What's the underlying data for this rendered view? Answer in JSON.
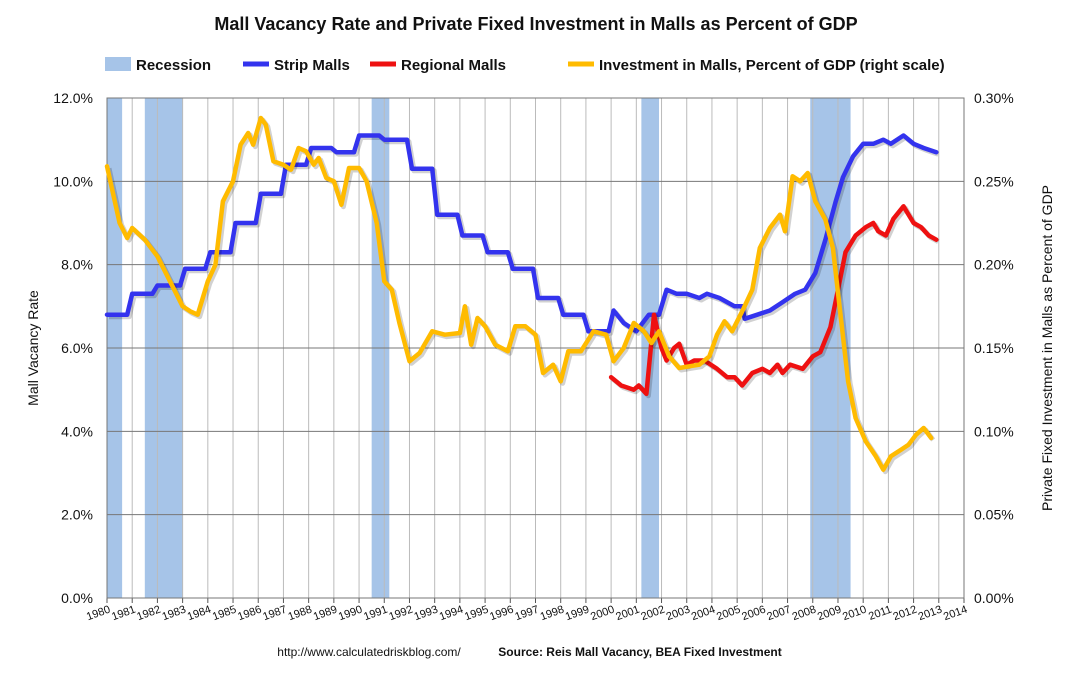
{
  "chart_data": {
    "type": "line",
    "title": "Mall Vacancy Rate and Private Fixed Investment in Malls as Percent of GDP",
    "ylabel": "Mall Vacancy Rate",
    "ylabel_right": "Private Fixed Investment in Malls as Percent of GDP",
    "ylim": [
      0,
      12
    ],
    "ylim_right": [
      0,
      0.3
    ],
    "xlim": [
      1980,
      2014
    ],
    "y_ticks": [
      "0.0%",
      "2.0%",
      "4.0%",
      "6.0%",
      "8.0%",
      "10.0%",
      "12.0%"
    ],
    "y_ticks_right": [
      "0.00%",
      "0.05%",
      "0.10%",
      "0.15%",
      "0.20%",
      "0.25%",
      "0.30%"
    ],
    "x_ticks": [
      "1980",
      "1981",
      "1982",
      "1983",
      "1984",
      "1985",
      "1986",
      "1987",
      "1988",
      "1989",
      "1990",
      "1991",
      "1992",
      "1993",
      "1994",
      "1995",
      "1996",
      "1997",
      "1998",
      "1999",
      "2000",
      "2001",
      "2002",
      "2003",
      "2004",
      "2005",
      "2006",
      "2007",
      "2008",
      "2009",
      "2010",
      "2011",
      "2012",
      "2013",
      "2014"
    ],
    "legend": [
      "Recession",
      "Strip Malls",
      "Regional Malls",
      "Investment in Malls, Percent of GDP (right scale)"
    ],
    "legend_position": "top",
    "grid": true,
    "recessions": [
      [
        1980.0,
        1980.6
      ],
      [
        1981.5,
        1983.0
      ],
      [
        1990.5,
        1991.2
      ],
      [
        2001.2,
        2001.9
      ],
      [
        2007.9,
        2009.5
      ]
    ],
    "series": [
      {
        "name": "Strip Malls",
        "color": "#3333ee",
        "axis": "left",
        "points": [
          [
            1980,
            6.8
          ],
          [
            1980.8,
            6.8
          ],
          [
            1981,
            7.3
          ],
          [
            1981.8,
            7.3
          ],
          [
            1982,
            7.5
          ],
          [
            1982.9,
            7.5
          ],
          [
            1983.1,
            7.9
          ],
          [
            1983.9,
            7.9
          ],
          [
            1984.1,
            8.3
          ],
          [
            1984.9,
            8.3
          ],
          [
            1985.1,
            9.0
          ],
          [
            1985.9,
            9.0
          ],
          [
            1986.1,
            9.7
          ],
          [
            1986.9,
            9.7
          ],
          [
            1987.1,
            10.4
          ],
          [
            1987.9,
            10.4
          ],
          [
            1988.1,
            10.8
          ],
          [
            1988.9,
            10.8
          ],
          [
            1989.1,
            10.7
          ],
          [
            1989.8,
            10.7
          ],
          [
            1990,
            11.1
          ],
          [
            1990.8,
            11.1
          ],
          [
            1991,
            11.0
          ],
          [
            1991.9,
            11.0
          ],
          [
            1992.1,
            10.3
          ],
          [
            1992.9,
            10.3
          ],
          [
            1993.1,
            9.2
          ],
          [
            1993.9,
            9.2
          ],
          [
            1994.1,
            8.7
          ],
          [
            1994.9,
            8.7
          ],
          [
            1995.1,
            8.3
          ],
          [
            1995.9,
            8.3
          ],
          [
            1996.1,
            7.9
          ],
          [
            1996.9,
            7.9
          ],
          [
            1997.1,
            7.2
          ],
          [
            1997.9,
            7.2
          ],
          [
            1998.1,
            6.8
          ],
          [
            1998.9,
            6.8
          ],
          [
            1999.1,
            6.4
          ],
          [
            1999.9,
            6.4
          ],
          [
            2000.1,
            6.9
          ],
          [
            2000.5,
            6.6
          ],
          [
            2001,
            6.4
          ],
          [
            2001.5,
            6.8
          ],
          [
            2001.9,
            6.8
          ],
          [
            2002.2,
            7.4
          ],
          [
            2002.6,
            7.3
          ],
          [
            2003,
            7.3
          ],
          [
            2003.5,
            7.2
          ],
          [
            2003.8,
            7.3
          ],
          [
            2004.3,
            7.2
          ],
          [
            2004.9,
            7.0
          ],
          [
            2005.2,
            7.0
          ],
          [
            2005.3,
            6.7
          ],
          [
            2005.8,
            6.8
          ],
          [
            2006.3,
            6.9
          ],
          [
            2006.8,
            7.1
          ],
          [
            2007.3,
            7.3
          ],
          [
            2007.7,
            7.4
          ],
          [
            2008.1,
            7.8
          ],
          [
            2008.5,
            8.6
          ],
          [
            2008.9,
            9.5
          ],
          [
            2009.2,
            10.1
          ],
          [
            2009.6,
            10.6
          ],
          [
            2010,
            10.9
          ],
          [
            2010.4,
            10.9
          ],
          [
            2010.8,
            11.0
          ],
          [
            2011.1,
            10.9
          ],
          [
            2011.6,
            11.1
          ],
          [
            2012,
            10.9
          ],
          [
            2012.4,
            10.8
          ],
          [
            2012.9,
            10.7
          ]
        ]
      },
      {
        "name": "Regional Malls",
        "color": "#ee1111",
        "axis": "left",
        "points": [
          [
            2000,
            5.3
          ],
          [
            2000.4,
            5.1
          ],
          [
            2000.9,
            5.0
          ],
          [
            2001.1,
            5.1
          ],
          [
            2001.4,
            4.9
          ],
          [
            2001.7,
            6.8
          ],
          [
            2002,
            6.0
          ],
          [
            2002.2,
            5.7
          ],
          [
            2002.5,
            6.0
          ],
          [
            2002.7,
            6.1
          ],
          [
            2003,
            5.6
          ],
          [
            2003.3,
            5.7
          ],
          [
            2003.7,
            5.7
          ],
          [
            2004.2,
            5.5
          ],
          [
            2004.6,
            5.3
          ],
          [
            2004.9,
            5.3
          ],
          [
            2005.2,
            5.1
          ],
          [
            2005.6,
            5.4
          ],
          [
            2006,
            5.5
          ],
          [
            2006.3,
            5.4
          ],
          [
            2006.6,
            5.6
          ],
          [
            2006.8,
            5.4
          ],
          [
            2007.1,
            5.6
          ],
          [
            2007.6,
            5.5
          ],
          [
            2008,
            5.8
          ],
          [
            2008.3,
            5.9
          ],
          [
            2008.7,
            6.5
          ],
          [
            2009,
            7.4
          ],
          [
            2009.3,
            8.3
          ],
          [
            2009.7,
            8.7
          ],
          [
            2010.1,
            8.9
          ],
          [
            2010.4,
            9.0
          ],
          [
            2010.6,
            8.8
          ],
          [
            2010.9,
            8.7
          ],
          [
            2011.2,
            9.1
          ],
          [
            2011.6,
            9.4
          ],
          [
            2012,
            9.0
          ],
          [
            2012.3,
            8.9
          ],
          [
            2012.6,
            8.7
          ],
          [
            2012.9,
            8.6
          ]
        ]
      },
      {
        "name": "Investment in Malls, Percent of GDP (right scale)",
        "color": "#ffbb00",
        "axis": "right",
        "points": [
          [
            1980,
            0.259
          ],
          [
            1980.5,
            0.225
          ],
          [
            1980.8,
            0.216
          ],
          [
            1981,
            0.222
          ],
          [
            1981.5,
            0.215
          ],
          [
            1982,
            0.205
          ],
          [
            1982.5,
            0.19
          ],
          [
            1983,
            0.175
          ],
          [
            1983.3,
            0.172
          ],
          [
            1983.6,
            0.17
          ],
          [
            1984,
            0.19
          ],
          [
            1984.3,
            0.2
          ],
          [
            1984.6,
            0.238
          ],
          [
            1985,
            0.25
          ],
          [
            1985.3,
            0.272
          ],
          [
            1985.6,
            0.279
          ],
          [
            1985.8,
            0.272
          ],
          [
            1986.1,
            0.288
          ],
          [
            1986.3,
            0.284
          ],
          [
            1986.6,
            0.262
          ],
          [
            1987,
            0.26
          ],
          [
            1987.3,
            0.257
          ],
          [
            1987.6,
            0.27
          ],
          [
            1987.9,
            0.268
          ],
          [
            1988.2,
            0.26
          ],
          [
            1988.4,
            0.264
          ],
          [
            1988.7,
            0.252
          ],
          [
            1989,
            0.25
          ],
          [
            1989.3,
            0.236
          ],
          [
            1989.6,
            0.258
          ],
          [
            1990,
            0.258
          ],
          [
            1990.3,
            0.25
          ],
          [
            1990.7,
            0.225
          ],
          [
            1991,
            0.19
          ],
          [
            1991.3,
            0.185
          ],
          [
            1991.6,
            0.165
          ],
          [
            1992,
            0.142
          ],
          [
            1992.4,
            0.147
          ],
          [
            1992.9,
            0.16
          ],
          [
            1993.4,
            0.158
          ],
          [
            1994,
            0.159
          ],
          [
            1994.2,
            0.175
          ],
          [
            1994.45,
            0.152
          ],
          [
            1994.7,
            0.168
          ],
          [
            1995,
            0.163
          ],
          [
            1995.4,
            0.152
          ],
          [
            1995.9,
            0.148
          ],
          [
            1996.2,
            0.163
          ],
          [
            1996.6,
            0.163
          ],
          [
            1997,
            0.158
          ],
          [
            1997.3,
            0.135
          ],
          [
            1997.7,
            0.14
          ],
          [
            1998,
            0.13
          ],
          [
            1998.3,
            0.148
          ],
          [
            1998.8,
            0.148
          ],
          [
            1999.3,
            0.16
          ],
          [
            1999.8,
            0.158
          ],
          [
            2000.1,
            0.142
          ],
          [
            2000.5,
            0.15
          ],
          [
            2000.9,
            0.165
          ],
          [
            2001.3,
            0.16
          ],
          [
            2001.6,
            0.153
          ],
          [
            2001.9,
            0.16
          ],
          [
            2002.3,
            0.145
          ],
          [
            2002.7,
            0.138
          ],
          [
            2003.1,
            0.139
          ],
          [
            2003.5,
            0.14
          ],
          [
            2003.9,
            0.145
          ],
          [
            2004.2,
            0.158
          ],
          [
            2004.5,
            0.166
          ],
          [
            2004.8,
            0.16
          ],
          [
            2005.2,
            0.172
          ],
          [
            2005.6,
            0.185
          ],
          [
            2005.9,
            0.21
          ],
          [
            2006.3,
            0.222
          ],
          [
            2006.7,
            0.23
          ],
          [
            2006.9,
            0.22
          ],
          [
            2007.2,
            0.253
          ],
          [
            2007.5,
            0.25
          ],
          [
            2007.8,
            0.255
          ],
          [
            2008.1,
            0.238
          ],
          [
            2008.5,
            0.227
          ],
          [
            2008.8,
            0.21
          ],
          [
            2009.1,
            0.17
          ],
          [
            2009.4,
            0.13
          ],
          [
            2009.7,
            0.108
          ],
          [
            2010.1,
            0.094
          ],
          [
            2010.5,
            0.085
          ],
          [
            2010.8,
            0.077
          ],
          [
            2011.1,
            0.085
          ],
          [
            2011.5,
            0.089
          ],
          [
            2011.8,
            0.092
          ],
          [
            2012.1,
            0.098
          ],
          [
            2012.4,
            0.102
          ],
          [
            2012.7,
            0.096
          ]
        ]
      }
    ],
    "source": "Source: Reis Mall Vacancy, BEA Fixed Investment",
    "url": "http://www.calculatedriskblog.com/"
  }
}
